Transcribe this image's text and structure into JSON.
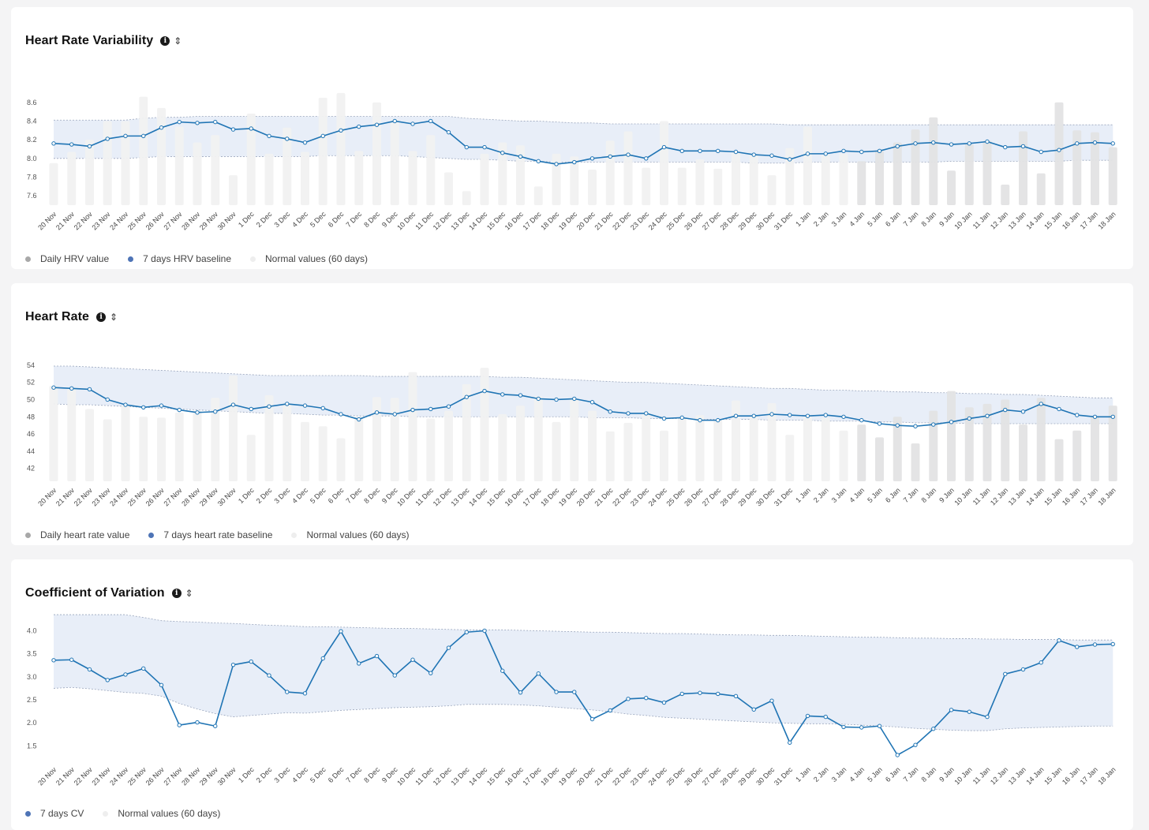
{
  "colors": {
    "bar_past": "#f1f1f1",
    "bar_recent": "#e3e3e4",
    "baseline": "#1f74b4",
    "band_fill": "#e8eef8",
    "band_edge": "#9aa6bd",
    "legend_daily": "#a8a8a8",
    "legend_baseline": "#4e74b6",
    "legend_normal": "#eeeeee"
  },
  "dates": [
    "20 Nov",
    "21 Nov",
    "22 Nov",
    "23 Nov",
    "24 Nov",
    "25 Nov",
    "26 Nov",
    "27 Nov",
    "28 Nov",
    "29 Nov",
    "30 Nov",
    "1 Dec",
    "2 Dec",
    "3 Dec",
    "4 Dec",
    "5 Dec",
    "6 Dec",
    "7 Dec",
    "8 Dec",
    "9 Dec",
    "10 Dec",
    "11 Dec",
    "12 Dec",
    "13 Dec",
    "14 Dec",
    "15 Dec",
    "16 Dec",
    "17 Dec",
    "18 Dec",
    "19 Dec",
    "20 Dec",
    "21 Dec",
    "22 Dec",
    "23 Dec",
    "24 Dec",
    "25 Dec",
    "26 Dec",
    "27 Dec",
    "28 Dec",
    "29 Dec",
    "30 Dec",
    "31 Dec",
    "1 Jan",
    "2 Jan",
    "3 Jan",
    "4 Jan",
    "5 Jan",
    "6 Jan",
    "7 Jan",
    "8 Jan",
    "9 Jan",
    "10 Jan",
    "11 Jan",
    "12 Jan",
    "13 Jan",
    "14 Jan",
    "15 Jan",
    "16 Jan",
    "17 Jan",
    "18 Jan"
  ],
  "chart_data": [
    {
      "type": "bar+line",
      "title": "Heart Rate Variability",
      "yticks": [
        7.6,
        7.8,
        8.0,
        8.2,
        8.4,
        8.6
      ],
      "ylim": [
        7.5,
        8.75
      ],
      "recent_from_index": 45,
      "daily": [
        7.95,
        8.07,
        8.2,
        8.4,
        8.4,
        8.66,
        8.54,
        8.34,
        8.17,
        8.25,
        7.82,
        8.48,
        8.05,
        8.33,
        8.07,
        8.65,
        8.7,
        8.08,
        8.6,
        8.42,
        8.08,
        8.25,
        7.85,
        7.65,
        8.05,
        8.17,
        8.14,
        7.7,
        8.05,
        8.02,
        7.88,
        8.19,
        8.29,
        7.9,
        8.4,
        7.9,
        7.99,
        7.89,
        8.07,
        8.04,
        7.82,
        8.11,
        8.34,
        8.04,
        8.05,
        7.97,
        8.08,
        8.17,
        8.31,
        8.44,
        7.87,
        8.15,
        8.19,
        7.72,
        8.29,
        7.84,
        8.6,
        8.3,
        8.28,
        8.12
      ],
      "baseline": [
        8.16,
        8.15,
        8.13,
        8.21,
        8.24,
        8.24,
        8.33,
        8.39,
        8.38,
        8.39,
        8.31,
        8.32,
        8.24,
        8.21,
        8.17,
        8.24,
        8.3,
        8.34,
        8.36,
        8.4,
        8.37,
        8.4,
        8.28,
        8.12,
        8.12,
        8.06,
        8.02,
        7.97,
        7.94,
        7.96,
        8.0,
        8.02,
        8.04,
        8.0,
        8.12,
        8.08,
        8.08,
        8.08,
        8.07,
        8.04,
        8.03,
        7.99,
        8.05,
        8.05,
        8.08,
        8.07,
        8.08,
        8.13,
        8.16,
        8.17,
        8.15,
        8.16,
        8.18,
        8.12,
        8.13,
        8.07,
        8.09,
        8.16,
        8.17,
        8.16
      ],
      "normal_upper": [
        8.41,
        8.41,
        8.41,
        8.41,
        8.41,
        8.43,
        8.44,
        8.44,
        8.45,
        8.45,
        8.45,
        8.45,
        8.45,
        8.45,
        8.45,
        8.45,
        8.45,
        8.45,
        8.45,
        8.45,
        8.45,
        8.45,
        8.45,
        8.43,
        8.42,
        8.41,
        8.4,
        8.4,
        8.39,
        8.38,
        8.38,
        8.37,
        8.37,
        8.37,
        8.37,
        8.37,
        8.37,
        8.37,
        8.37,
        8.37,
        8.37,
        8.36,
        8.36,
        8.36,
        8.36,
        8.36,
        8.36,
        8.36,
        8.36,
        8.36,
        8.36,
        8.36,
        8.36,
        8.36,
        8.36,
        8.36,
        8.36,
        8.36,
        8.36,
        8.36
      ],
      "normal_lower": [
        8.0,
        8.0,
        8.0,
        8.0,
        8.0,
        8.01,
        8.02,
        8.02,
        8.02,
        8.02,
        8.02,
        8.02,
        8.02,
        8.02,
        8.02,
        8.03,
        8.03,
        8.03,
        8.03,
        8.03,
        8.02,
        8.01,
        8.0,
        7.99,
        7.99,
        7.98,
        7.97,
        7.97,
        7.96,
        7.96,
        7.96,
        7.96,
        7.96,
        7.96,
        7.96,
        7.96,
        7.96,
        7.96,
        7.96,
        7.95,
        7.95,
        7.95,
        7.96,
        7.96,
        7.96,
        7.96,
        7.96,
        7.96,
        7.96,
        7.96,
        7.97,
        7.97,
        7.97,
        7.97,
        7.97,
        7.97,
        7.97,
        7.98,
        7.98,
        7.98
      ],
      "legend": [
        "Daily HRV value",
        "7 days HRV baseline",
        "Normal values (60 days)"
      ]
    },
    {
      "type": "bar+line",
      "title": "Heart Rate",
      "yticks": [
        42,
        44,
        46,
        48,
        50,
        52,
        54
      ],
      "ylim": [
        40.5,
        55
      ],
      "recent_from_index": 45,
      "daily": [
        51.6,
        51.3,
        48.9,
        47.7,
        49.3,
        48.0,
        47.9,
        48.5,
        48.7,
        50.2,
        52.8,
        45.9,
        50.5,
        49.6,
        47.4,
        46.9,
        45.5,
        48.0,
        50.3,
        50.2,
        53.2,
        47.8,
        48.7,
        51.8,
        53.7,
        48.3,
        49.3,
        50.4,
        47.4,
        50.1,
        48.7,
        46.3,
        47.3,
        48.6,
        46.4,
        47.8,
        48.2,
        47.7,
        49.9,
        48.1,
        49.6,
        45.9,
        48.0,
        47.9,
        46.4,
        47.1,
        45.6,
        48.0,
        44.9,
        48.7,
        51.0,
        49.1,
        49.5,
        50.0,
        47.1,
        50.2,
        45.4,
        46.4,
        48.0,
        49.3
      ],
      "baseline": [
        51.4,
        51.3,
        51.2,
        50.0,
        49.4,
        49.1,
        49.3,
        48.8,
        48.5,
        48.6,
        49.4,
        48.9,
        49.2,
        49.5,
        49.3,
        49.0,
        48.3,
        47.7,
        48.5,
        48.3,
        48.8,
        48.9,
        49.2,
        50.3,
        51.0,
        50.6,
        50.5,
        50.1,
        50.0,
        50.1,
        49.7,
        48.6,
        48.4,
        48.4,
        47.8,
        47.9,
        47.6,
        47.6,
        48.1,
        48.1,
        48.3,
        48.2,
        48.1,
        48.2,
        48.0,
        47.6,
        47.2,
        47.0,
        46.9,
        47.1,
        47.4,
        47.8,
        48.1,
        48.8,
        48.6,
        49.5,
        48.9,
        48.2,
        48.0,
        48.0
      ],
      "normal_upper": [
        53.9,
        53.9,
        53.8,
        53.7,
        53.6,
        53.5,
        53.4,
        53.3,
        53.2,
        53.1,
        53.0,
        52.9,
        52.8,
        52.8,
        52.8,
        52.8,
        52.8,
        52.8,
        52.7,
        52.7,
        52.7,
        52.7,
        52.7,
        52.7,
        52.7,
        52.6,
        52.6,
        52.5,
        52.4,
        52.3,
        52.2,
        52.1,
        52.0,
        52.0,
        51.9,
        51.8,
        51.7,
        51.6,
        51.5,
        51.4,
        51.3,
        51.3,
        51.2,
        51.1,
        51.1,
        51.0,
        51.0,
        50.9,
        50.9,
        50.8,
        50.8,
        50.7,
        50.7,
        50.6,
        50.6,
        50.5,
        50.4,
        50.3,
        50.2,
        50.2
      ],
      "normal_lower": [
        49.5,
        49.4,
        49.4,
        49.3,
        49.2,
        49.1,
        49.0,
        48.9,
        48.8,
        48.7,
        48.6,
        48.5,
        48.4,
        48.4,
        48.3,
        48.2,
        48.2,
        48.1,
        48.1,
        48.1,
        48.0,
        48.0,
        48.0,
        48.0,
        48.0,
        48.0,
        48.0,
        48.0,
        48.0,
        48.0,
        47.9,
        47.9,
        47.9,
        47.8,
        47.8,
        47.8,
        47.7,
        47.7,
        47.7,
        47.7,
        47.6,
        47.6,
        47.6,
        47.5,
        47.5,
        47.5,
        47.4,
        47.4,
        47.3,
        47.3,
        47.3,
        47.2,
        47.2,
        47.2,
        47.2,
        47.2,
        47.2,
        47.2,
        47.2,
        47.2
      ],
      "legend": [
        "Daily heart rate value",
        "7 days heart rate baseline",
        "Normal values (60 days)"
      ]
    },
    {
      "type": "line",
      "title": "Coefficient of Variation",
      "yticks": [
        1.5,
        2.0,
        2.5,
        3.0,
        3.5,
        4.0
      ],
      "ylim": [
        1.18,
        4.3
      ],
      "baseline": [
        3.36,
        3.37,
        3.16,
        2.93,
        3.05,
        3.18,
        2.82,
        1.95,
        2.01,
        1.93,
        3.26,
        3.33,
        3.03,
        2.67,
        2.64,
        3.4,
        3.99,
        3.29,
        3.45,
        3.03,
        3.37,
        3.08,
        3.63,
        3.97,
        4.0,
        3.13,
        2.66,
        3.07,
        2.67,
        2.67,
        2.08,
        2.27,
        2.52,
        2.54,
        2.44,
        2.63,
        2.65,
        2.63,
        2.58,
        2.29,
        2.48,
        1.57,
        2.15,
        2.13,
        1.91,
        1.9,
        1.93,
        1.3,
        1.52,
        1.87,
        2.28,
        2.24,
        2.13,
        3.06,
        3.16,
        3.31,
        3.79,
        3.65,
        3.7,
        3.71
      ],
      "normal_upper": [
        4.35,
        4.35,
        4.35,
        4.35,
        4.35,
        4.29,
        4.22,
        4.2,
        4.19,
        4.17,
        4.16,
        4.14,
        4.12,
        4.11,
        4.09,
        4.09,
        4.08,
        4.07,
        4.06,
        4.05,
        4.05,
        4.04,
        4.03,
        4.02,
        4.02,
        4.02,
        4.01,
        4.0,
        3.99,
        3.98,
        3.97,
        3.97,
        3.96,
        3.95,
        3.94,
        3.94,
        3.93,
        3.92,
        3.91,
        3.91,
        3.9,
        3.9,
        3.89,
        3.88,
        3.87,
        3.86,
        3.86,
        3.85,
        3.84,
        3.84,
        3.83,
        3.83,
        3.82,
        3.82,
        3.81,
        3.81,
        3.81,
        3.8,
        3.8,
        3.8
      ],
      "normal_lower": [
        2.75,
        2.77,
        2.74,
        2.7,
        2.66,
        2.64,
        2.58,
        2.42,
        2.3,
        2.2,
        2.13,
        2.16,
        2.19,
        2.22,
        2.21,
        2.24,
        2.27,
        2.29,
        2.31,
        2.33,
        2.34,
        2.35,
        2.37,
        2.4,
        2.4,
        2.4,
        2.39,
        2.37,
        2.34,
        2.31,
        2.28,
        2.24,
        2.19,
        2.16,
        2.12,
        2.1,
        2.08,
        2.06,
        2.04,
        2.02,
        2.0,
        1.99,
        1.98,
        1.98,
        1.97,
        1.95,
        1.93,
        1.91,
        1.88,
        1.86,
        1.84,
        1.83,
        1.83,
        1.87,
        1.89,
        1.9,
        1.91,
        1.92,
        1.93,
        1.93
      ],
      "legend": [
        "7 days CV",
        "Normal values (60 days)"
      ]
    }
  ]
}
